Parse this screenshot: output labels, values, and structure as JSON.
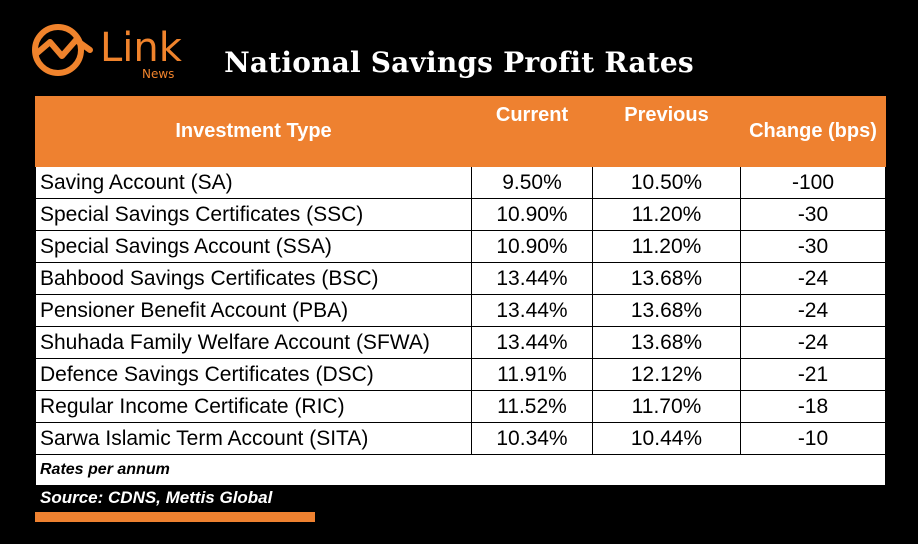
{
  "brand": {
    "name": "Link",
    "sub": "News",
    "color": "#f0832c"
  },
  "title": "National Savings Profit Rates",
  "table": {
    "headers": [
      "Investment Type",
      "Current",
      "Previous",
      "Change (bps)"
    ],
    "rows": [
      [
        "Saving Account (SA)",
        "9.50%",
        "10.50%",
        "-100"
      ],
      [
        "Special Savings Certificates (SSC)",
        "10.90%",
        "11.20%",
        "-30"
      ],
      [
        "Special Savings Account (SSA)",
        "10.90%",
        "11.20%",
        "-30"
      ],
      [
        "Bahbood Savings Certificates (BSC)",
        "13.44%",
        "13.68%",
        "-24"
      ],
      [
        "Pensioner Benefit Account (PBA)",
        "13.44%",
        "13.68%",
        "-24"
      ],
      [
        "Shuhada Family Welfare Account (SFWA)",
        "13.44%",
        "13.68%",
        "-24"
      ],
      [
        "Defence Savings Certificates (DSC)",
        "11.91%",
        "12.12%",
        "-21"
      ],
      [
        "Regular Income Certificate (RIC)",
        "11.52%",
        "11.70%",
        "-18"
      ],
      [
        "Sarwa Islamic Term Account (SITA)",
        "10.34%",
        "10.44%",
        "-10"
      ]
    ],
    "note": "Rates per annum"
  },
  "source": "Source: CDNS, Mettis Global",
  "colors": {
    "accent": "#ee8130",
    "background": "#000000",
    "table_bg": "#ffffff"
  },
  "chart_data": {
    "type": "table",
    "title": "National Savings Profit Rates",
    "columns": [
      "Investment Type",
      "Current",
      "Previous",
      "Change (bps)"
    ],
    "rows": [
      [
        "Saving Account (SA)",
        9.5,
        10.5,
        -100
      ],
      [
        "Special Savings Certificates (SSC)",
        10.9,
        11.2,
        -30
      ],
      [
        "Special Savings Account (SSA)",
        10.9,
        11.2,
        -30
      ],
      [
        "Bahbood Savings Certificates (BSC)",
        13.44,
        13.68,
        -24
      ],
      [
        "Pensioner Benefit Account (PBA)",
        13.44,
        13.68,
        -24
      ],
      [
        "Shuhada Family Welfare Account (SFWA)",
        13.44,
        13.68,
        -24
      ],
      [
        "Defence Savings Certificates (DSC)",
        11.91,
        12.12,
        -21
      ],
      [
        "Regular Income Certificate (RIC)",
        11.52,
        11.7,
        -18
      ],
      [
        "Sarwa Islamic Term Account (SITA)",
        10.34,
        10.44,
        -10
      ]
    ]
  }
}
